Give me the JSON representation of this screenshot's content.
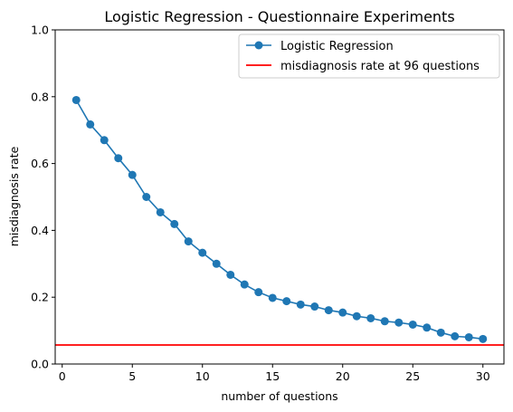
{
  "chart_data": {
    "type": "line",
    "title": "Logistic Regression - Questionnaire Experiments",
    "xlabel": "number of questions",
    "ylabel": "misdiagnosis rate",
    "xlim": [
      -0.5,
      31.5
    ],
    "ylim": [
      0.0,
      1.0
    ],
    "xticks": [
      0,
      5,
      10,
      15,
      20,
      25,
      30
    ],
    "xtick_labels": [
      "0",
      "5",
      "10",
      "15",
      "20",
      "25",
      "30"
    ],
    "yticks": [
      0.0,
      0.2,
      0.4,
      0.6,
      0.8,
      1.0
    ],
    "ytick_labels": [
      "0.0",
      "0.2",
      "0.4",
      "0.6",
      "0.8",
      "1.0"
    ],
    "grid": false,
    "legend_position": "top-right",
    "series": [
      {
        "name": "Logistic Regression",
        "color": "#1f77b4",
        "marker": "circle",
        "x": [
          1,
          2,
          3,
          4,
          5,
          6,
          7,
          8,
          9,
          10,
          11,
          12,
          13,
          14,
          15,
          16,
          17,
          18,
          19,
          20,
          21,
          22,
          23,
          24,
          25,
          26,
          27,
          28,
          29,
          30
        ],
        "y": [
          0.79,
          0.717,
          0.67,
          0.616,
          0.566,
          0.5,
          0.454,
          0.419,
          0.367,
          0.333,
          0.3,
          0.267,
          0.238,
          0.215,
          0.198,
          0.188,
          0.178,
          0.172,
          0.161,
          0.154,
          0.143,
          0.137,
          0.128,
          0.124,
          0.118,
          0.109,
          0.094,
          0.083,
          0.08,
          0.075
        ]
      }
    ],
    "reference_lines": [
      {
        "name": "misdiagnosis rate at 96 questions",
        "color": "#ff0000",
        "orientation": "horizontal",
        "y": 0.057
      }
    ]
  }
}
